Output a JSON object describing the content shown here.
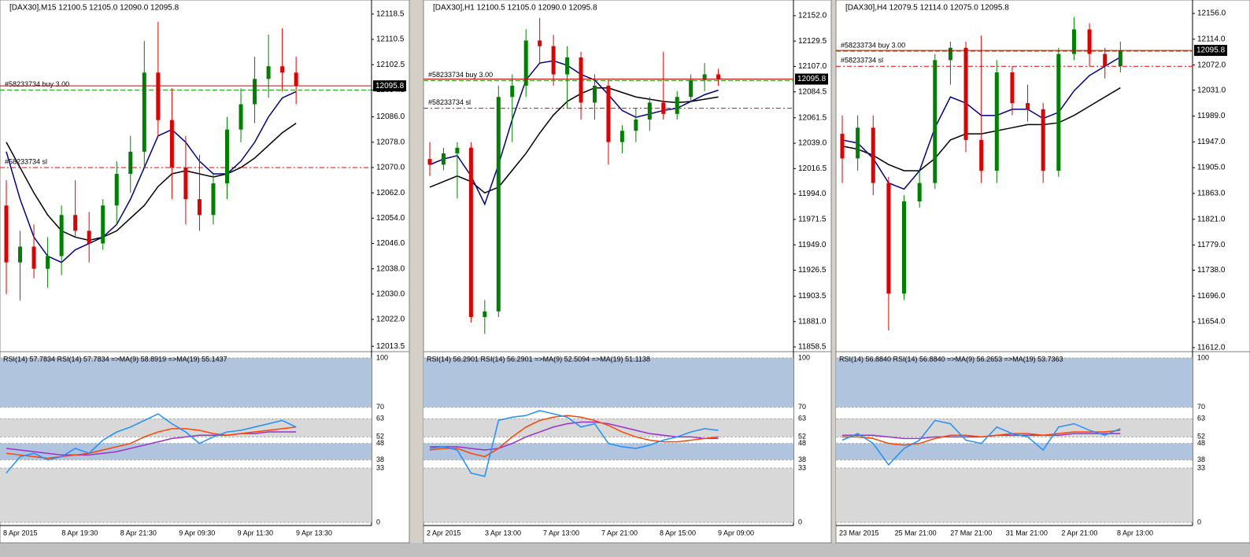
{
  "panels": [
    {
      "header": "[DAX30],M15  12100.5 12105.0 12090.0 12095.8",
      "ylim": [
        12012.3,
        12122.2
      ],
      "yticks": [
        12118.5,
        12110.5,
        12102.5,
        12094.5,
        {
          "value": 12086,
          "label": "12086.0"
        },
        {
          "value": 12078,
          "label": "12078.0"
        },
        {
          "value": 12070,
          "label": "12070.0"
        },
        {
          "value": 12062,
          "label": "12062.0"
        },
        {
          "value": 12054,
          "label": "12054.0"
        },
        {
          "value": 12046,
          "label": "12046.0"
        },
        {
          "value": 12038,
          "label": "12038.0"
        },
        {
          "value": 12030,
          "label": "12030.0"
        },
        {
          "value": 12022,
          "label": "12022.0"
        },
        12013.5
      ],
      "candles": [
        [
          12058,
          12066,
          12030,
          12040
        ],
        [
          12040,
          12050,
          12028,
          12045
        ],
        [
          12045,
          12052,
          12035,
          12038
        ],
        [
          12038,
          12048,
          12032,
          12042
        ],
        [
          12042,
          12058,
          12036,
          12055
        ],
        [
          12055,
          12066,
          12048,
          12050
        ],
        [
          12050,
          12056,
          12040,
          12046
        ],
        [
          12046,
          12060,
          12044,
          12058
        ],
        [
          12058,
          12072,
          12052,
          12068
        ],
        [
          12068,
          12080,
          12062,
          12075
        ],
        [
          12075,
          12110,
          12070,
          12100
        ],
        [
          12100,
          12116,
          12080,
          12085
        ],
        [
          12085,
          12095,
          12060,
          12070
        ],
        [
          12070,
          12080,
          12052,
          12060
        ],
        [
          12060,
          12074,
          12050,
          12055
        ],
        [
          12055,
          12068,
          12052,
          12065
        ],
        [
          12065,
          12086,
          12060,
          12082
        ],
        [
          12082,
          12095,
          12078,
          12090
        ],
        [
          12090,
          12105,
          12084,
          12098
        ],
        [
          12098,
          12112,
          12092,
          12102
        ],
        [
          12102,
          12114,
          12094,
          12100
        ],
        [
          12100,
          12105,
          12090,
          12095.8
        ]
      ],
      "ma_fast": [
        12075,
        12060,
        12048,
        12042,
        12040,
        12044,
        12046,
        12048,
        12052,
        12060,
        12070,
        12080,
        12082,
        12078,
        12072,
        12068,
        12068,
        12072,
        12078,
        12086,
        12092,
        12094
      ],
      "ma_slow": [
        12078,
        12070,
        12062,
        12055,
        12050,
        12048,
        12047,
        12048,
        12050,
        12054,
        12058,
        12064,
        12068,
        12069,
        12068,
        12067,
        12068,
        12070,
        12073,
        12077,
        12081,
        12084
      ],
      "price_tag": 12095.8,
      "orders": [
        {
          "label": "#58233734 buy 3.00",
          "price": 12094.5
        },
        {
          "label": "#58233734 sl",
          "price": 12070
        }
      ],
      "rsi_header": "RSI(14) 57.7834  RSI(14) 57.7834  =>MA(9) 58.8919  =>MA(19) 55.1437",
      "rsi_ylim": [
        0,
        100
      ],
      "rsi_ticks": [
        100,
        70,
        63,
        52,
        48,
        38,
        33,
        0
      ],
      "rsi": [
        30,
        40,
        42,
        38,
        40,
        45,
        42,
        50,
        55,
        58,
        62,
        66,
        60,
        55,
        48,
        52,
        55,
        56,
        58,
        60,
        62,
        58
      ],
      "rsi_ma9": [
        42,
        41,
        40,
        39,
        40,
        41,
        42,
        44,
        46,
        48,
        52,
        55,
        57,
        57,
        56,
        54,
        53,
        54,
        55,
        56,
        57,
        58
      ],
      "rsi_ma19": [
        45,
        44,
        43,
        42,
        41,
        41,
        41,
        42,
        43,
        45,
        47,
        49,
        51,
        52,
        53,
        53,
        53,
        54,
        54,
        55,
        55,
        55
      ],
      "time_labels": [
        "8 Apr 2015",
        "8 Apr 19:30",
        "8 Apr 21:30",
        "9 Apr 09:30",
        "9 Apr 11:30",
        "9 Apr 13:30"
      ]
    },
    {
      "header": "[DAX30],H1  12100.5 12105.0 12090.0 12095.8",
      "ylim": [
        11855.7,
        12163.8
      ],
      "yticks": [
        {
          "value": 12152,
          "label": "12152.0"
        },
        12129.5,
        {
          "value": 12107,
          "label": "12107.0"
        },
        12084.5,
        12061.5,
        {
          "value": 12039,
          "label": "12039.0"
        },
        12016.5,
        {
          "value": 11994,
          "label": "11994.0"
        },
        11971.5,
        {
          "value": 11949,
          "label": "11949.0"
        },
        11926.5,
        11903.5,
        {
          "value": 11881,
          "label": "11881.0"
        },
        11858.5
      ],
      "candles": [
        [
          12025,
          12040,
          12010,
          12020
        ],
        [
          12020,
          12035,
          12015,
          12030
        ],
        [
          12030,
          12040,
          11990,
          12035
        ],
        [
          12035,
          12040,
          11880,
          11885
        ],
        [
          11885,
          11900,
          11870,
          11890
        ],
        [
          11890,
          12090,
          11885,
          12080
        ],
        [
          12080,
          12100,
          12040,
          12090
        ],
        [
          12090,
          12140,
          12080,
          12130
        ],
        [
          12130,
          12150,
          12110,
          12125
        ],
        [
          12125,
          12135,
          12090,
          12100
        ],
        [
          12100,
          12125,
          12070,
          12115
        ],
        [
          12115,
          12120,
          12060,
          12075
        ],
        [
          12075,
          12100,
          12060,
          12090
        ],
        [
          12090,
          12095,
          12020,
          12040
        ],
        [
          12040,
          12055,
          12030,
          12050
        ],
        [
          12050,
          12070,
          12040,
          12060
        ],
        [
          12060,
          12080,
          12050,
          12075
        ],
        [
          12075,
          12120,
          12060,
          12065
        ],
        [
          12065,
          12085,
          12060,
          12080
        ],
        [
          12080,
          12100,
          12075,
          12095
        ],
        [
          12095,
          12110,
          12085,
          12100
        ],
        [
          12100,
          12105,
          12090,
          12095.8
        ]
      ],
      "ma_fast": [
        12020,
        12025,
        12028,
        12010,
        11985,
        12020,
        12060,
        12095,
        12110,
        12112,
        12108,
        12100,
        12095,
        12082,
        12068,
        12062,
        12065,
        12068,
        12070,
        12076,
        12082,
        12086
      ],
      "ma_slow": [
        12000,
        12005,
        12010,
        12005,
        11995,
        12000,
        12015,
        12030,
        12048,
        12064,
        12076,
        12083,
        12088,
        12088,
        12084,
        12080,
        12078,
        12076,
        12075,
        12076,
        12078,
        12080
      ],
      "price_tag": 12095.8,
      "orders": [
        {
          "label": "#58233734 buy 3.00",
          "price": 12094.5
        },
        {
          "label": "#58233734 sl",
          "price": 12070
        }
      ],
      "rsi_header": "RSI(14) 56.2901  RSI(14) 56.2901  =>MA(9) 52.5094  =>MA(19) 51.1138",
      "rsi_ylim": [
        0,
        100
      ],
      "rsi_ticks": [
        100,
        70,
        63,
        52,
        48,
        38,
        33,
        0
      ],
      "rsi": [
        45,
        46,
        44,
        30,
        28,
        62,
        64,
        65,
        68,
        66,
        64,
        58,
        60,
        48,
        46,
        45,
        47,
        50,
        52,
        55,
        57,
        56
      ],
      "rsi_ma9": [
        44,
        45,
        45,
        42,
        40,
        45,
        52,
        58,
        62,
        64,
        65,
        64,
        62,
        59,
        55,
        52,
        50,
        49,
        49,
        50,
        51,
        52
      ],
      "rsi_ma19": [
        46,
        46,
        46,
        45,
        44,
        45,
        48,
        52,
        55,
        58,
        60,
        61,
        61,
        60,
        58,
        56,
        54,
        53,
        52,
        52,
        51,
        51
      ],
      "time_labels": [
        "2 Apr 2015",
        "3 Apr 13:00",
        "7 Apr 13:00",
        "7 Apr 21:00",
        "8 Apr 15:00",
        "9 Apr 09:00"
      ]
    },
    {
      "header": "[DAX30],H4  12079.5 12114.0 12075.0 12095.8",
      "ylim": [
        11608,
        12174
      ],
      "yticks": [
        {
          "value": 12156,
          "label": "12156.0"
        },
        {
          "value": 12114,
          "label": "12114.0"
        },
        {
          "value": 12072,
          "label": "12072.0"
        },
        {
          "value": 12031,
          "label": "12031.0"
        },
        {
          "value": 11989,
          "label": "11989.0"
        },
        {
          "value": 11947,
          "label": "11947.0"
        },
        {
          "value": 11905,
          "label": "11905.0"
        },
        {
          "value": 11863,
          "label": "11863.0"
        },
        {
          "value": 11821,
          "label": "11821.0"
        },
        {
          "value": 11779,
          "label": "11779.0"
        },
        {
          "value": 11738,
          "label": "11738.0"
        },
        {
          "value": 11696,
          "label": "11696.0"
        },
        {
          "value": 11654,
          "label": "11654.0"
        },
        {
          "value": 11612,
          "label": "11612.0"
        }
      ],
      "candles": [
        [
          11960,
          11990,
          11880,
          11920
        ],
        [
          11920,
          11990,
          11900,
          11970
        ],
        [
          11970,
          11990,
          11860,
          11880
        ],
        [
          11880,
          11890,
          11640,
          11700
        ],
        [
          11700,
          11860,
          11690,
          11850
        ],
        [
          11850,
          11900,
          11840,
          11880
        ],
        [
          11880,
          12090,
          11870,
          12080
        ],
        [
          12080,
          12110,
          12040,
          12100
        ],
        [
          12100,
          12110,
          11930,
          11950
        ],
        [
          11950,
          12120,
          11880,
          11900
        ],
        [
          11900,
          12080,
          11880,
          12060
        ],
        [
          12060,
          12070,
          11990,
          12010
        ],
        [
          12010,
          12040,
          11980,
          12000
        ],
        [
          12000,
          12010,
          11880,
          11900
        ],
        [
          11900,
          12100,
          11890,
          12090
        ],
        [
          12090,
          12150,
          12080,
          12130
        ],
        [
          12130,
          12140,
          12070,
          12090
        ],
        [
          12090,
          12100,
          12050,
          12070
        ],
        [
          12070,
          12110,
          12060,
          12095.8
        ]
      ],
      "ma_fast": [
        11950,
        11945,
        11920,
        11880,
        11870,
        11900,
        11970,
        12020,
        12010,
        11990,
        11990,
        12000,
        12000,
        11985,
        11995,
        12030,
        12055,
        12070,
        12085
      ],
      "ma_slow": [
        11940,
        11935,
        11925,
        11910,
        11900,
        11900,
        11920,
        11950,
        11960,
        11960,
        11965,
        11970,
        11975,
        11975,
        11978,
        11990,
        12005,
        12020,
        12035
      ],
      "price_tag": 12095.8,
      "orders": [
        {
          "label": "#58233734 buy 3.00",
          "price": 12094.5
        },
        {
          "label": "#58233734 sl",
          "price": 12070
        }
      ],
      "rsi_header": "RSI(14) 56.8840  RSI(14) 56.8840  =>MA(9) 56.2653  =>MA(19) 53.7363",
      "rsi_ylim": [
        0,
        100
      ],
      "rsi_ticks": [
        100,
        70,
        63,
        52,
        48,
        38,
        33,
        0
      ],
      "rsi": [
        50,
        54,
        48,
        35,
        45,
        50,
        62,
        60,
        50,
        48,
        58,
        54,
        52,
        44,
        58,
        60,
        56,
        53,
        57
      ],
      "rsi_ma9": [
        52,
        52,
        51,
        48,
        47,
        48,
        51,
        53,
        53,
        52,
        53,
        54,
        54,
        53,
        54,
        55,
        55,
        55,
        56
      ],
      "rsi_ma19": [
        53,
        53,
        53,
        52,
        51,
        51,
        52,
        52,
        52,
        52,
        53,
        53,
        53,
        53,
        53,
        54,
        54,
        54,
        54
      ],
      "time_labels": [
        "23 Mar 2015",
        "25 Mar 21:00",
        "27 Mar 21:00",
        "31 Mar 21:00",
        "2 Apr 21:00",
        "8 Apr 13:00"
      ]
    }
  ]
}
